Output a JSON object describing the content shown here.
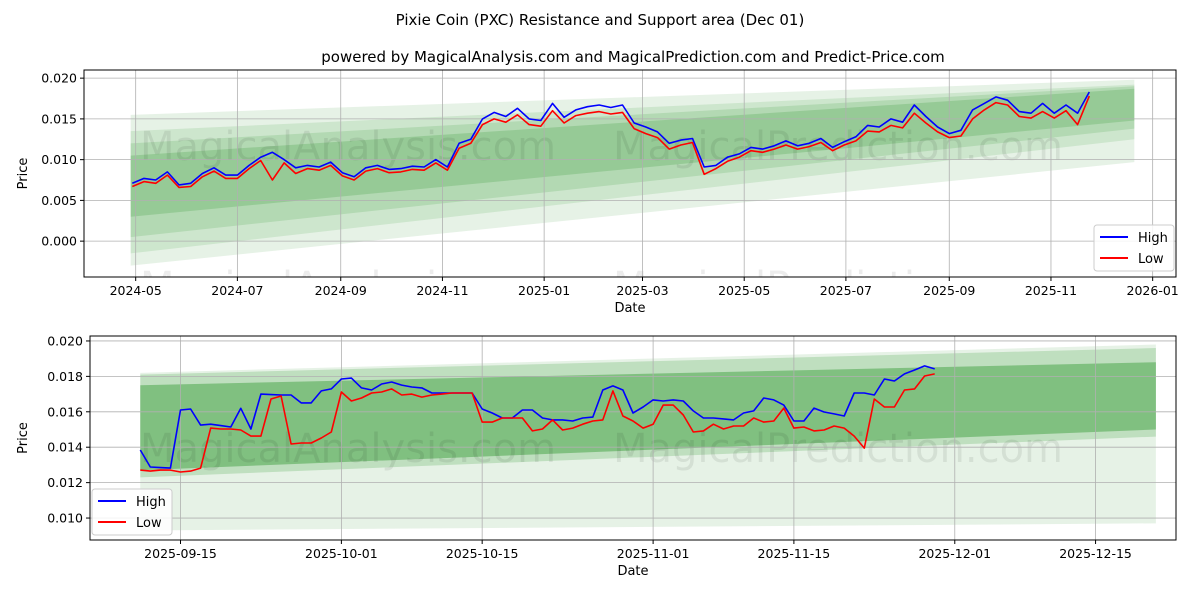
{
  "title": "Pixie Coin (PXC) Resistance and Support area (Dec 01)",
  "subtitle": "powered by MagicalAnalysis.com and MagicalPrediction.com and Predict-Price.com",
  "watermarks": [
    "MagicalAnalysis.com",
    "MagicalPrediction.com"
  ],
  "colors": {
    "high": "#0000ff",
    "low": "#ff0000",
    "band": "#4ca64c",
    "grid": "#b0b0b0"
  },
  "chart_data": [
    {
      "type": "line",
      "xlabel": "Date",
      "ylabel": "Price",
      "xlim": [
        "2024-03-31",
        "2026-01-15"
      ],
      "ylim": [
        -0.0044,
        0.021
      ],
      "grid": true,
      "legend": {
        "placement": "bottom-right",
        "entries": [
          "High",
          "Low"
        ]
      },
      "xticks": [
        {
          "date": "2024-05-01",
          "label": "2024-05"
        },
        {
          "date": "2024-07-01",
          "label": "2024-07"
        },
        {
          "date": "2024-09-01",
          "label": "2024-09"
        },
        {
          "date": "2024-11-01",
          "label": "2024-11"
        },
        {
          "date": "2025-01-01",
          "label": "2025-01"
        },
        {
          "date": "2025-03-01",
          "label": "2025-03"
        },
        {
          "date": "2025-05-01",
          "label": "2025-05"
        },
        {
          "date": "2025-07-01",
          "label": "2025-07"
        },
        {
          "date": "2025-09-01",
          "label": "2025-09"
        },
        {
          "date": "2025-11-01",
          "label": "2025-11"
        },
        {
          "date": "2026-01-01",
          "label": "2026-01"
        }
      ],
      "yticks": [
        {
          "value": 0.0,
          "label": "0.000"
        },
        {
          "value": 0.005,
          "label": "0.005"
        },
        {
          "value": 0.01,
          "label": "0.010"
        },
        {
          "value": 0.015,
          "label": "0.015"
        },
        {
          "value": 0.02,
          "label": "0.020"
        }
      ],
      "bands_start": "2024-04-28",
      "bands_end": "2025-12-21",
      "bands": [
        {
          "start": [
            -0.003,
            0.0155
          ],
          "end": [
            0.0097,
            0.0198
          ],
          "opacity": 0.14
        },
        {
          "start": [
            -0.0015,
            0.0135
          ],
          "end": [
            0.0125,
            0.0192
          ],
          "opacity": 0.16
        },
        {
          "start": [
            0.0005,
            0.012
          ],
          "end": [
            0.0138,
            0.019
          ],
          "opacity": 0.2
        },
        {
          "start": [
            0.003,
            0.0105
          ],
          "end": [
            0.0148,
            0.0187
          ],
          "opacity": 0.28
        }
      ],
      "series_start": "2024-04-29",
      "series_step_days": 7,
      "series": [
        {
          "name": "High",
          "values": [
            0.0071,
            0.0077,
            0.0075,
            0.0085,
            0.0069,
            0.0071,
            0.0083,
            0.009,
            0.0081,
            0.0081,
            0.0093,
            0.0103,
            0.0109,
            0.01,
            0.009,
            0.0093,
            0.0091,
            0.0097,
            0.0084,
            0.0079,
            0.009,
            0.0093,
            0.0088,
            0.0089,
            0.0092,
            0.0091,
            0.01,
            0.0091,
            0.012,
            0.0125,
            0.015,
            0.0158,
            0.0153,
            0.0163,
            0.015,
            0.0148,
            0.0169,
            0.0152,
            0.0161,
            0.0165,
            0.0167,
            0.0164,
            0.0167,
            0.0145,
            0.014,
            0.0134,
            0.012,
            0.0124,
            0.0126,
            0.0091,
            0.0093,
            0.0103,
            0.0107,
            0.0115,
            0.0113,
            0.0117,
            0.0123,
            0.0117,
            0.012,
            0.0126,
            0.0115,
            0.0122,
            0.0128,
            0.0142,
            0.014,
            0.015,
            0.0146,
            0.0167,
            0.0153,
            0.014,
            0.0132,
            0.0136,
            0.0161,
            0.0169,
            0.0177,
            0.0173,
            0.0159,
            0.0157,
            0.0169,
            0.0157,
            0.0167,
            0.0157,
            0.0183
          ]
        },
        {
          "name": "Low",
          "values": [
            0.0067,
            0.0073,
            0.0071,
            0.0081,
            0.0066,
            0.0067,
            0.0079,
            0.0086,
            0.0077,
            0.0077,
            0.0089,
            0.0099,
            0.0075,
            0.0096,
            0.0083,
            0.0089,
            0.0087,
            0.0093,
            0.008,
            0.0075,
            0.0086,
            0.0089,
            0.0084,
            0.0085,
            0.0088,
            0.0087,
            0.0096,
            0.0087,
            0.0114,
            0.012,
            0.0143,
            0.015,
            0.0146,
            0.0155,
            0.0143,
            0.0141,
            0.016,
            0.0145,
            0.0154,
            0.0157,
            0.0159,
            0.0156,
            0.0158,
            0.0138,
            0.0132,
            0.0127,
            0.0113,
            0.0118,
            0.0121,
            0.0082,
            0.0089,
            0.0098,
            0.0103,
            0.0111,
            0.0109,
            0.0113,
            0.0118,
            0.0113,
            0.0116,
            0.0121,
            0.0111,
            0.0118,
            0.0123,
            0.0135,
            0.0134,
            0.0142,
            0.0139,
            0.0157,
            0.0145,
            0.0134,
            0.0127,
            0.0129,
            0.015,
            0.0161,
            0.017,
            0.0167,
            0.0153,
            0.0151,
            0.0159,
            0.0151,
            0.016,
            0.0143,
            0.0178
          ]
        }
      ]
    },
    {
      "type": "line",
      "xlabel": "Date",
      "ylabel": "Price",
      "xlim": [
        "2025-09-06",
        "2025-12-23"
      ],
      "ylim": [
        0.00876,
        0.02028
      ],
      "grid": true,
      "legend": {
        "placement": "bottom-left",
        "entries": [
          "High",
          "Low"
        ]
      },
      "xticks": [
        {
          "date": "2025-09-15",
          "label": "2025-09-15"
        },
        {
          "date": "2025-10-01",
          "label": "2025-10-01"
        },
        {
          "date": "2025-10-15",
          "label": "2025-10-15"
        },
        {
          "date": "2025-11-01",
          "label": "2025-11-01"
        },
        {
          "date": "2025-11-15",
          "label": "2025-11-15"
        },
        {
          "date": "2025-12-01",
          "label": "2025-12-01"
        },
        {
          "date": "2025-12-15",
          "label": "2025-12-15"
        }
      ],
      "yticks": [
        {
          "value": 0.01,
          "label": "0.010"
        },
        {
          "value": 0.012,
          "label": "0.012"
        },
        {
          "value": 0.014,
          "label": "0.014"
        },
        {
          "value": 0.016,
          "label": "0.016"
        },
        {
          "value": 0.018,
          "label": "0.018"
        },
        {
          "value": 0.02,
          "label": "0.020"
        }
      ],
      "bands_start": "2025-09-11",
      "bands_end": "2025-12-21",
      "bands": [
        {
          "start": [
            0.0093,
            0.0182
          ],
          "end": [
            0.0097,
            0.0198
          ],
          "opacity": 0.14
        },
        {
          "start": [
            0.0123,
            0.0181
          ],
          "end": [
            0.0146,
            0.0196
          ],
          "opacity": 0.25
        },
        {
          "start": [
            0.0127,
            0.0175
          ],
          "end": [
            0.015,
            0.0188
          ],
          "opacity": 0.55
        }
      ],
      "series_start": "2025-09-11",
      "series_step_days": 1,
      "series": [
        {
          "name": "High",
          "values": [
            0.01384,
            0.01288,
            0.01285,
            0.01282,
            0.0161,
            0.01616,
            0.01525,
            0.0153,
            0.01522,
            0.01514,
            0.0162,
            0.01503,
            0.017,
            0.01697,
            0.01695,
            0.01695,
            0.0165,
            0.0165,
            0.01718,
            0.01729,
            0.01785,
            0.0179,
            0.01735,
            0.01723,
            0.01757,
            0.01768,
            0.01751,
            0.0174,
            0.01735,
            0.01706,
            0.01706,
            0.01706,
            0.01706,
            0.01706,
            0.01616,
            0.01593,
            0.01565,
            0.01565,
            0.0161,
            0.0161,
            0.01565,
            0.01554,
            0.01554,
            0.01548,
            0.01565,
            0.0157,
            0.01723,
            0.01746,
            0.01723,
            0.01593,
            0.01627,
            0.01667,
            0.01661,
            0.01667,
            0.01661,
            0.01605,
            0.01565,
            0.01565,
            0.0156,
            0.01554,
            0.01593,
            0.01605,
            0.01678,
            0.01667,
            0.01638,
            0.01548,
            0.01548,
            0.01621,
            0.01599,
            0.01588,
            0.01576,
            0.01706,
            0.01706,
            0.01695,
            0.01785,
            0.01774,
            0.01814,
            0.01836,
            0.01859,
            0.01842
          ]
        },
        {
          "name": "Low",
          "values": [
            0.01271,
            0.01265,
            0.01271,
            0.01271,
            0.0126,
            0.01265,
            0.01282,
            0.01508,
            0.01503,
            0.01503,
            0.01497,
            0.01463,
            0.01463,
            0.01672,
            0.01689,
            0.01418,
            0.01424,
            0.01424,
            0.01452,
            0.01486,
            0.01712,
            0.01661,
            0.01678,
            0.01706,
            0.01712,
            0.01729,
            0.01695,
            0.017,
            0.01683,
            0.01695,
            0.017,
            0.01706,
            0.01706,
            0.01706,
            0.01542,
            0.01542,
            0.01565,
            0.01565,
            0.01565,
            0.01492,
            0.01503,
            0.01554,
            0.01497,
            0.01508,
            0.0153,
            0.01548,
            0.01554,
            0.01718,
            0.01576,
            0.01548,
            0.01508,
            0.0153,
            0.01638,
            0.01638,
            0.01582,
            0.01486,
            0.01492,
            0.0153,
            0.01503,
            0.0152,
            0.0152,
            0.01565,
            0.01542,
            0.01548,
            0.01621,
            0.01508,
            0.01514,
            0.01492,
            0.01497,
            0.0152,
            0.01508,
            0.01463,
            0.01395,
            0.01672,
            0.01627,
            0.01627,
            0.01723,
            0.01729,
            0.01802,
            0.01814
          ]
        }
      ]
    }
  ]
}
